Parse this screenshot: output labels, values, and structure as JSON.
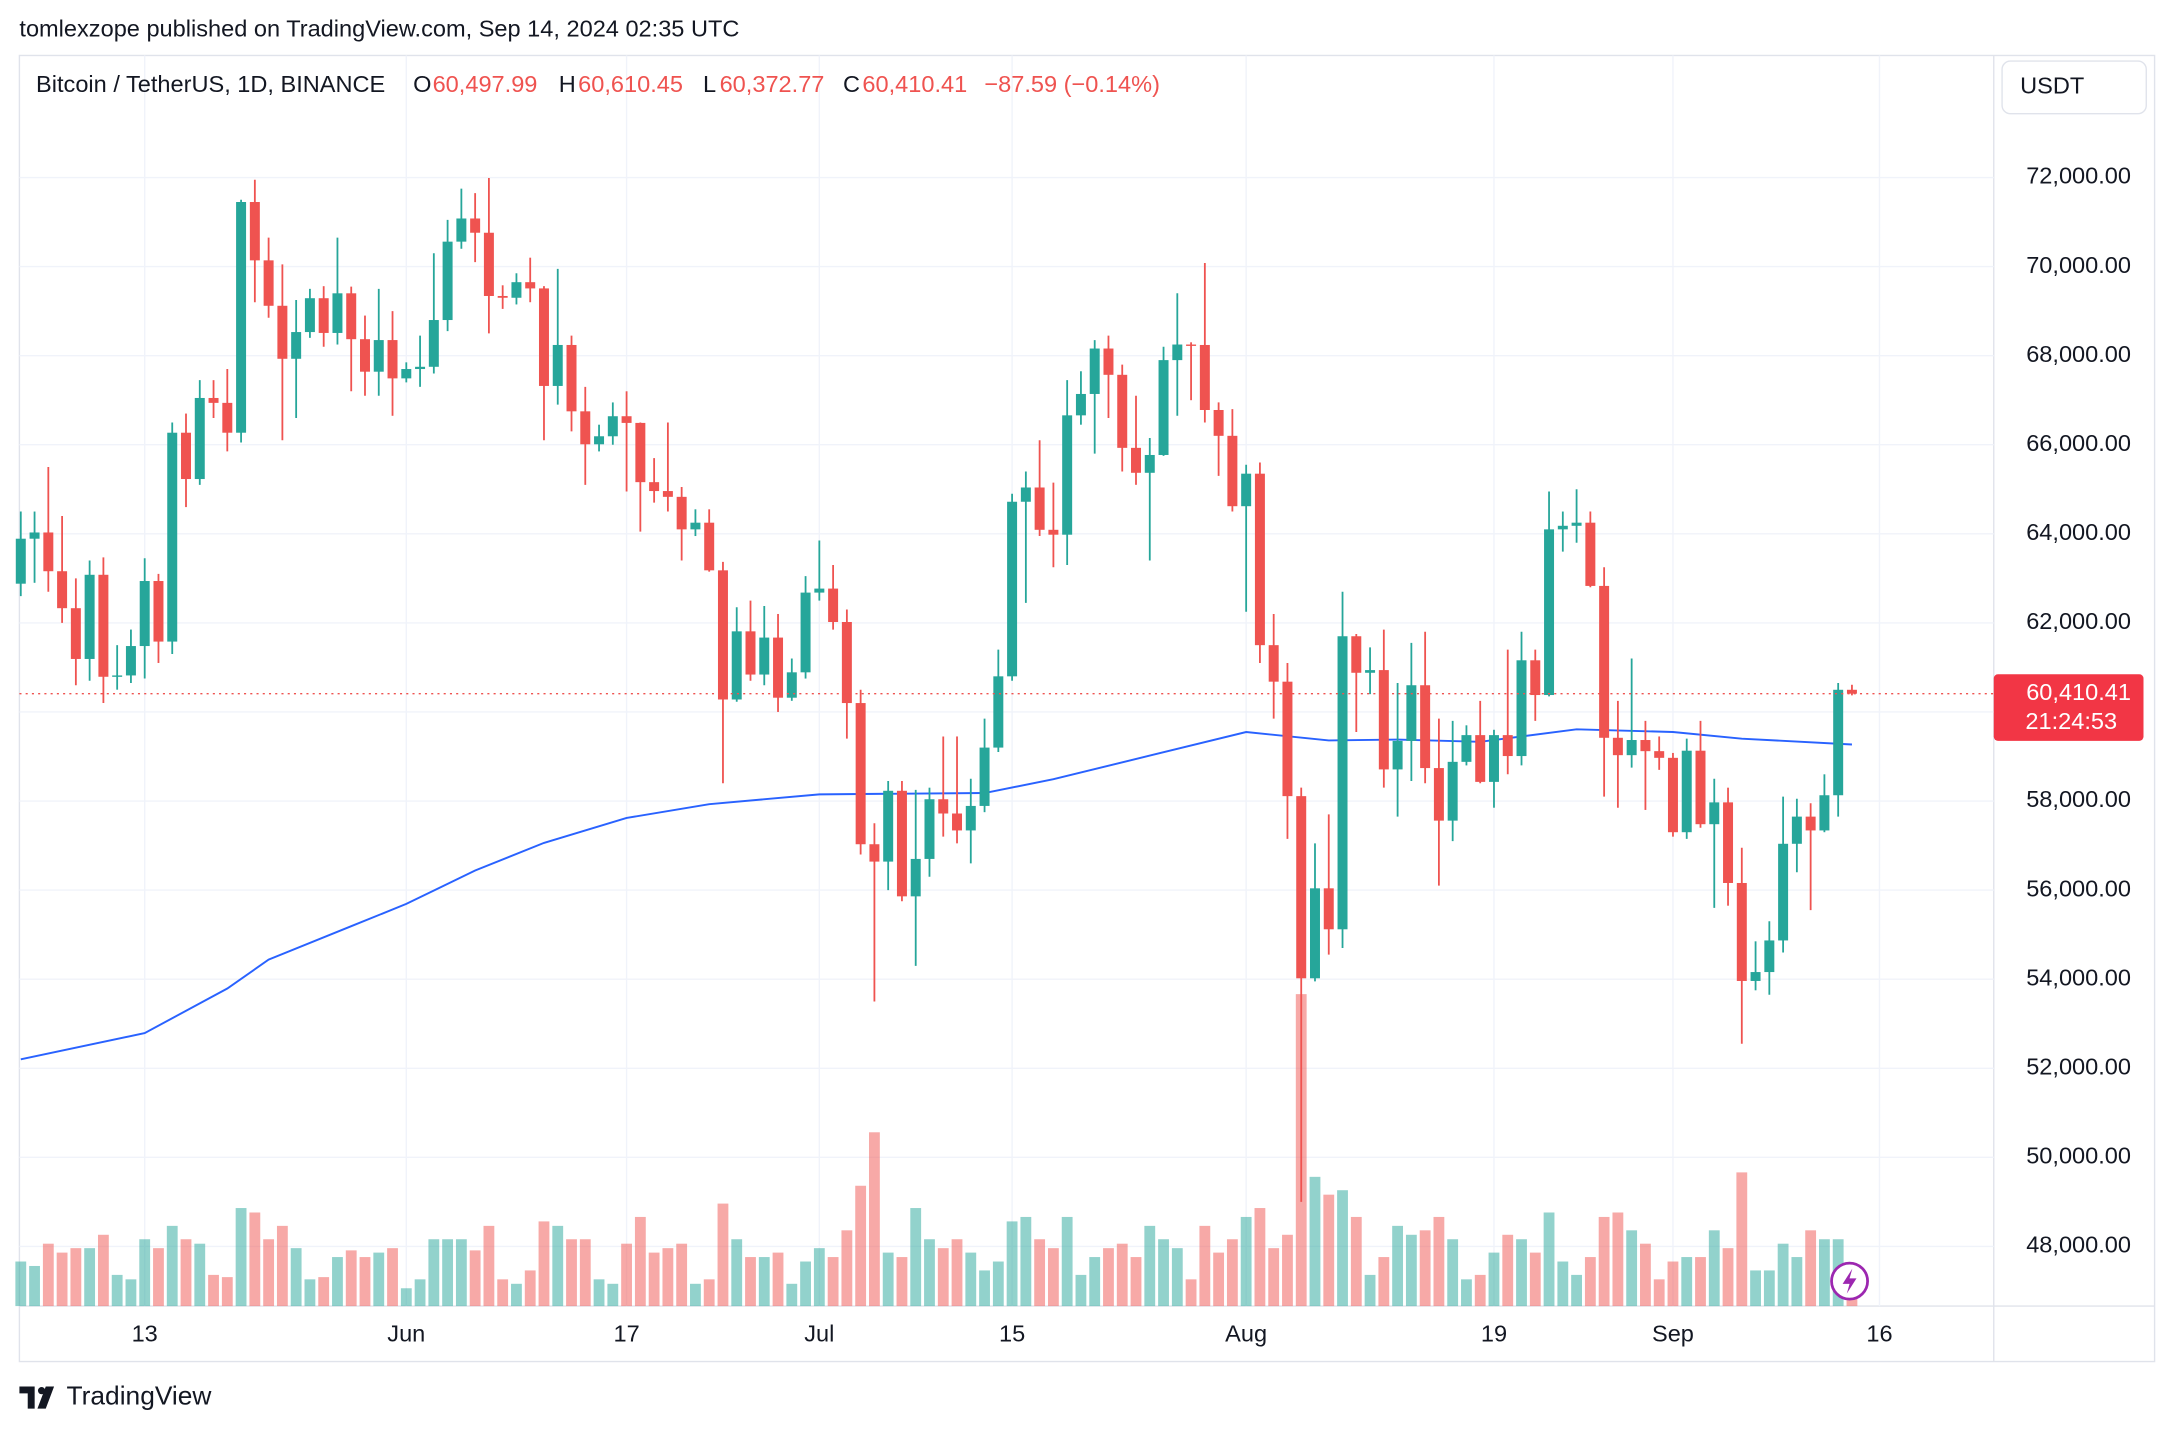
{
  "header": "tomlexzope published on TradingView.com, Sep 14, 2024 02:35 UTC",
  "footer": "TradingView",
  "chart_data": {
    "type": "candlestick",
    "title": "Bitcoin / TetherUS, 1D, BINANCE",
    "ohlc_legend": [
      {
        "key": "O",
        "value": "60,497.99"
      },
      {
        "key": "H",
        "value": "60,610.45"
      },
      {
        "key": "L",
        "value": "60,372.77"
      },
      {
        "key": "C",
        "value": "60,410.41"
      }
    ],
    "change": "−87.59 (−0.14%)",
    "currency": "USDT",
    "up_color": "#26a69a",
    "down_color": "#ef5350",
    "grid": true,
    "xlim": [
      -0.1,
      143.3
    ],
    "xticks": [
      {
        "value": 9,
        "label": "13"
      },
      {
        "value": 28,
        "label": "Jun"
      },
      {
        "value": 44,
        "label": "17"
      },
      {
        "value": 58,
        "label": "Jul"
      },
      {
        "value": 72,
        "label": "15"
      },
      {
        "value": 89,
        "label": "Aug"
      },
      {
        "value": 107,
        "label": "19"
      },
      {
        "value": 120,
        "label": "Sep"
      },
      {
        "value": 135,
        "label": "16"
      }
    ],
    "ylim": [
      46660,
      74740
    ],
    "yticks": [
      {
        "value": 48000,
        "label": "48,000.00"
      },
      {
        "value": 50000,
        "label": "50,000.00"
      },
      {
        "value": 52000,
        "label": "52,000.00"
      },
      {
        "value": 54000,
        "label": "54,000.00"
      },
      {
        "value": 56000,
        "label": "56,000.00"
      },
      {
        "value": 58000,
        "label": "58,000.00"
      },
      {
        "value": 60000,
        "label": "60,000.00"
      },
      {
        "value": 62000,
        "label": "62,000.00"
      },
      {
        "value": 64000,
        "label": "64,000.00"
      },
      {
        "value": 66000,
        "label": "66,000.00"
      },
      {
        "value": 68000,
        "label": "68,000.00"
      },
      {
        "value": 70000,
        "label": "70,000.00"
      },
      {
        "value": 72000,
        "label": "72,000.00"
      }
    ],
    "open": [
      62880,
      63890,
      64030,
      63160,
      62330,
      61190,
      63080,
      60790,
      60820,
      61480,
      62940,
      61580,
      66270,
      65230,
      67050,
      66940,
      66270,
      71450,
      70140,
      69120,
      67930,
      68530,
      69290,
      68510,
      69400,
      68370,
      67640,
      68350,
      67490,
      67700,
      67750,
      68800,
      70560,
      71080,
      70760,
      69340,
      69300,
      69650,
      69510,
      67320,
      68240,
      66750,
      66010,
      66190,
      66640,
      66490,
      65160,
      64960,
      64830,
      64100,
      64250,
      63180,
      60280,
      61810,
      60840,
      61670,
      60320,
      60890,
      62680,
      62770,
      62020,
      60200,
      57030,
      56640,
      58230,
      55860,
      56700,
      58040,
      57720,
      57340,
      57890,
      59200,
      60800,
      64720,
      65040,
      64090,
      63980,
      66660,
      67140,
      68160,
      67570,
      65930,
      65370,
      65770,
      67900,
      68250,
      68240,
      66780,
      66200,
      64620,
      65350,
      61500,
      60680,
      58110,
      54020,
      56040,
      55120,
      61700,
      60880,
      60940,
      58710,
      59350,
      60600,
      58740,
      57560,
      58880,
      59480,
      58430,
      59480,
      59010,
      61160,
      60380,
      64100,
      64180,
      64250,
      62830,
      59420,
      59030,
      59370,
      59120,
      58970,
      57300,
      59130,
      57480,
      57970,
      56160,
      53960,
      54160,
      54870,
      57040,
      57650,
      57340,
      58130,
      60497.99
    ],
    "high": [
      64500,
      64500,
      65500,
      64400,
      63000,
      63400,
      63470,
      61500,
      61850,
      63450,
      63100,
      66500,
      66700,
      67450,
      67450,
      67700,
      71500,
      71950,
      70650,
      70050,
      69250,
      69500,
      69560,
      70650,
      69550,
      68900,
      69500,
      69000,
      67850,
      68450,
      70300,
      71050,
      71750,
      71650,
      71990,
      69580,
      69850,
      70200,
      69560,
      69950,
      68450,
      67300,
      66450,
      66950,
      67200,
      66500,
      65700,
      66500,
      65050,
      64550,
      64550,
      63370,
      62350,
      62500,
      62380,
      62200,
      61200,
      63050,
      63850,
      63300,
      62300,
      60500,
      57500,
      58450,
      58450,
      58250,
      58300,
      59450,
      59450,
      58500,
      59850,
      61400,
      64900,
      65400,
      66100,
      65150,
      67450,
      67650,
      68350,
      68450,
      67800,
      67100,
      66150,
      68200,
      69400,
      68300,
      70080,
      66950,
      66800,
      65550,
      65600,
      62200,
      61100,
      58300,
      57050,
      57700,
      62700,
      61750,
      61450,
      61850,
      60650,
      61550,
      61800,
      59850,
      59800,
      59700,
      60250,
      59600,
      61400,
      61800,
      61400,
      64950,
      64500,
      65000,
      64500,
      63250,
      60250,
      61200,
      59800,
      59450,
      59080,
      59400,
      59800,
      58500,
      58300,
      56950,
      54850,
      55300,
      58100,
      58050,
      57950,
      58600,
      60650,
      60610.45
    ],
    "low": [
      62600,
      62900,
      62700,
      62000,
      60600,
      60700,
      60200,
      60500,
      60650,
      60750,
      61100,
      61300,
      64600,
      65100,
      66600,
      65850,
      66050,
      69200,
      68850,
      66100,
      66600,
      68400,
      68200,
      68250,
      67200,
      67100,
      67100,
      66650,
      67400,
      67300,
      67600,
      68550,
      70400,
      70100,
      68500,
      69050,
      69150,
      69200,
      66100,
      66900,
      66300,
      65100,
      65850,
      66000,
      64950,
      64050,
      64700,
      64500,
      63400,
      63950,
      63150,
      58400,
      60230,
      60700,
      60600,
      60000,
      60250,
      60750,
      62500,
      61850,
      59400,
      56800,
      53500,
      56000,
      55750,
      54300,
      56300,
      57200,
      57050,
      56600,
      57750,
      59100,
      60700,
      62450,
      63950,
      63250,
      63300,
      66450,
      65800,
      66600,
      65400,
      65100,
      63400,
      65750,
      66650,
      67000,
      66500,
      65300,
      64500,
      62250,
      61100,
      59850,
      57150,
      49000,
      53950,
      54550,
      54700,
      59550,
      60400,
      58300,
      57650,
      58450,
      58400,
      56100,
      57100,
      58800,
      58400,
      57850,
      58600,
      58800,
      59800,
      60350,
      63600,
      63800,
      62800,
      58100,
      57850,
      58750,
      57800,
      58700,
      57200,
      57150,
      57400,
      55600,
      55650,
      52550,
      53750,
      53650,
      54600,
      56400,
      55550,
      57300,
      57650,
      60372.77
    ],
    "close": [
      63890,
      64030,
      63160,
      62330,
      61190,
      63080,
      60790,
      60820,
      61480,
      62940,
      61580,
      66270,
      65230,
      67050,
      66940,
      66270,
      71450,
      70140,
      69120,
      67930,
      68530,
      69290,
      68510,
      69400,
      68370,
      67640,
      68350,
      67490,
      67700,
      67750,
      68800,
      70560,
      71080,
      70760,
      69340,
      69300,
      69650,
      69510,
      67320,
      68240,
      66750,
      66010,
      66190,
      66640,
      66490,
      65160,
      64960,
      64830,
      64100,
      64250,
      63180,
      60280,
      61810,
      60840,
      61670,
      60320,
      60890,
      62680,
      62770,
      62020,
      60200,
      57030,
      56640,
      58230,
      55860,
      56700,
      58040,
      57720,
      57340,
      57890,
      59200,
      60800,
      64720,
      65040,
      64090,
      63980,
      66660,
      67140,
      68160,
      67570,
      65930,
      65370,
      65770,
      67900,
      68250,
      68240,
      66780,
      66200,
      64620,
      65350,
      61500,
      60680,
      58110,
      54020,
      56040,
      55120,
      61700,
      60880,
      60940,
      58710,
      59350,
      60600,
      58740,
      57560,
      58880,
      59480,
      58430,
      59480,
      59010,
      61160,
      60380,
      64100,
      64180,
      64250,
      62830,
      59420,
      59030,
      59370,
      59120,
      58970,
      57300,
      59130,
      57480,
      57970,
      56160,
      53960,
      54160,
      54870,
      57040,
      57650,
      57340,
      58130,
      60497.99,
      60410.41
    ],
    "volume": [
      20000,
      18000,
      28000,
      24000,
      26000,
      26000,
      32000,
      14000,
      12000,
      30000,
      26000,
      36000,
      30000,
      28000,
      14000,
      13000,
      44000,
      42000,
      30000,
      36000,
      26000,
      12000,
      13000,
      22000,
      25000,
      22000,
      24000,
      26000,
      8000,
      12000,
      30000,
      30000,
      30000,
      25000,
      36000,
      12000,
      10000,
      16000,
      38000,
      36000,
      30000,
      30000,
      12000,
      10000,
      28000,
      40000,
      24000,
      26000,
      28000,
      10000,
      12000,
      46000,
      30000,
      22000,
      22000,
      24000,
      10000,
      20000,
      26000,
      22000,
      34000,
      54000,
      78000,
      24000,
      22000,
      44000,
      30000,
      26000,
      30000,
      24000,
      16000,
      20000,
      38000,
      40000,
      30000,
      26000,
      40000,
      14000,
      22000,
      26000,
      28000,
      22000,
      36000,
      30000,
      26000,
      12000,
      36000,
      24000,
      30000,
      40000,
      44000,
      26000,
      32000,
      140000,
      58000,
      50000,
      52000,
      40000,
      14000,
      22000,
      36000,
      32000,
      34000,
      40000,
      30000,
      12000,
      14000,
      24000,
      32000,
      30000,
      24000,
      42000,
      20000,
      14000,
      22000,
      40000,
      42000,
      34000,
      28000,
      12000,
      20000,
      22000,
      22000,
      34000,
      26000,
      60000,
      16000,
      16000,
      28000,
      22000,
      34000,
      30000,
      30000,
      6000
    ],
    "moving_average": {
      "color": "#2962ff",
      "x": [
        0,
        9,
        15,
        18,
        24,
        28,
        33,
        38,
        44,
        50,
        58,
        70,
        75,
        82,
        89,
        95,
        100,
        106,
        113,
        120,
        125,
        133
      ],
      "values": [
        52200,
        52790,
        53790,
        54440,
        55190,
        55690,
        56440,
        57060,
        57620,
        57930,
        58150,
        58180,
        58490,
        59020,
        59550,
        59360,
        59380,
        59330,
        59610,
        59550,
        59400,
        59270
      ]
    },
    "last_price": {
      "value": 60410.41,
      "label": "60,410.41"
    },
    "countdown": "21:24:53"
  }
}
